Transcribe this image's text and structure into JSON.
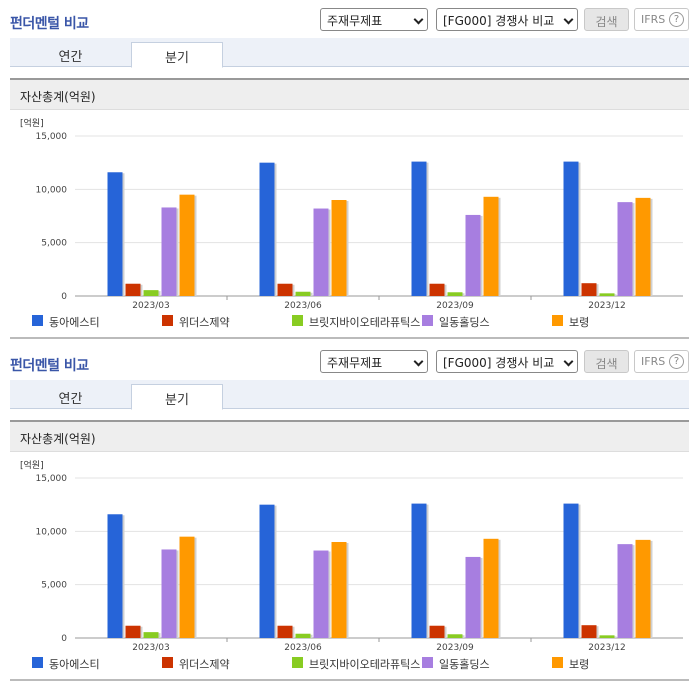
{
  "panels": [
    {
      "title": "펀더멘털 비교",
      "controls": {
        "statement_select": "주재무제표",
        "compare_select": "[FG000] 경쟁사 비교",
        "search_label": "검색",
        "ifrs_label": "IFRS",
        "help_label": "?"
      },
      "tabs": [
        {
          "label": "연간"
        },
        {
          "label": "분기"
        }
      ],
      "active_tab": "분기",
      "section_title": "자산총계(억원)"
    },
    {
      "title": "펀더멘털 비교",
      "controls": {
        "statement_select": "주재무제표",
        "compare_select": "[FG000] 경쟁사 비교",
        "search_label": "검색",
        "ifrs_label": "IFRS",
        "help_label": "?"
      },
      "tabs": [
        {
          "label": "연간"
        },
        {
          "label": "분기"
        }
      ],
      "active_tab": "분기",
      "section_title": "자산총계(억원)"
    }
  ],
  "chart_data": [
    {
      "type": "bar",
      "unit_label": "[억원]",
      "categories": [
        "2023/03",
        "2023/06",
        "2023/09",
        "2023/12"
      ],
      "ylim": [
        0,
        15000
      ],
      "yticks": [
        "0",
        "5,000",
        "10,000",
        "15,000"
      ],
      "grid": true,
      "legend_position": "bottom",
      "series": [
        {
          "name": "동아에스티",
          "color": "#2664d8",
          "values": [
            11600,
            12500,
            12600,
            12600
          ]
        },
        {
          "name": "위더스제약",
          "color": "#cc3300",
          "values": [
            1150,
            1150,
            1150,
            1200
          ]
        },
        {
          "name": "브릿지바이오테라퓨틱스",
          "color": "#88cc22",
          "values": [
            550,
            400,
            350,
            250
          ]
        },
        {
          "name": "일동홀딩스",
          "color": "#a77ee0",
          "values": [
            8300,
            8200,
            7600,
            8800
          ]
        },
        {
          "name": "보령",
          "color": "#ff9900",
          "values": [
            9500,
            9000,
            9300,
            9200
          ]
        }
      ]
    },
    {
      "type": "bar",
      "unit_label": "[억원]",
      "categories": [
        "2023/03",
        "2023/06",
        "2023/09",
        "2023/12"
      ],
      "ylim": [
        0,
        15000
      ],
      "yticks": [
        "0",
        "5,000",
        "10,000",
        "15,000"
      ],
      "grid": true,
      "legend_position": "bottom",
      "series": [
        {
          "name": "동아에스티",
          "color": "#2664d8",
          "values": [
            11600,
            12500,
            12600,
            12600
          ]
        },
        {
          "name": "위더스제약",
          "color": "#cc3300",
          "values": [
            1150,
            1150,
            1150,
            1200
          ]
        },
        {
          "name": "브릿지바이오테라퓨틱스",
          "color": "#88cc22",
          "values": [
            550,
            400,
            350,
            250
          ]
        },
        {
          "name": "일동홀딩스",
          "color": "#a77ee0",
          "values": [
            8300,
            8200,
            7600,
            8800
          ]
        },
        {
          "name": "보령",
          "color": "#ff9900",
          "values": [
            9500,
            9000,
            9300,
            9200
          ]
        }
      ]
    }
  ]
}
